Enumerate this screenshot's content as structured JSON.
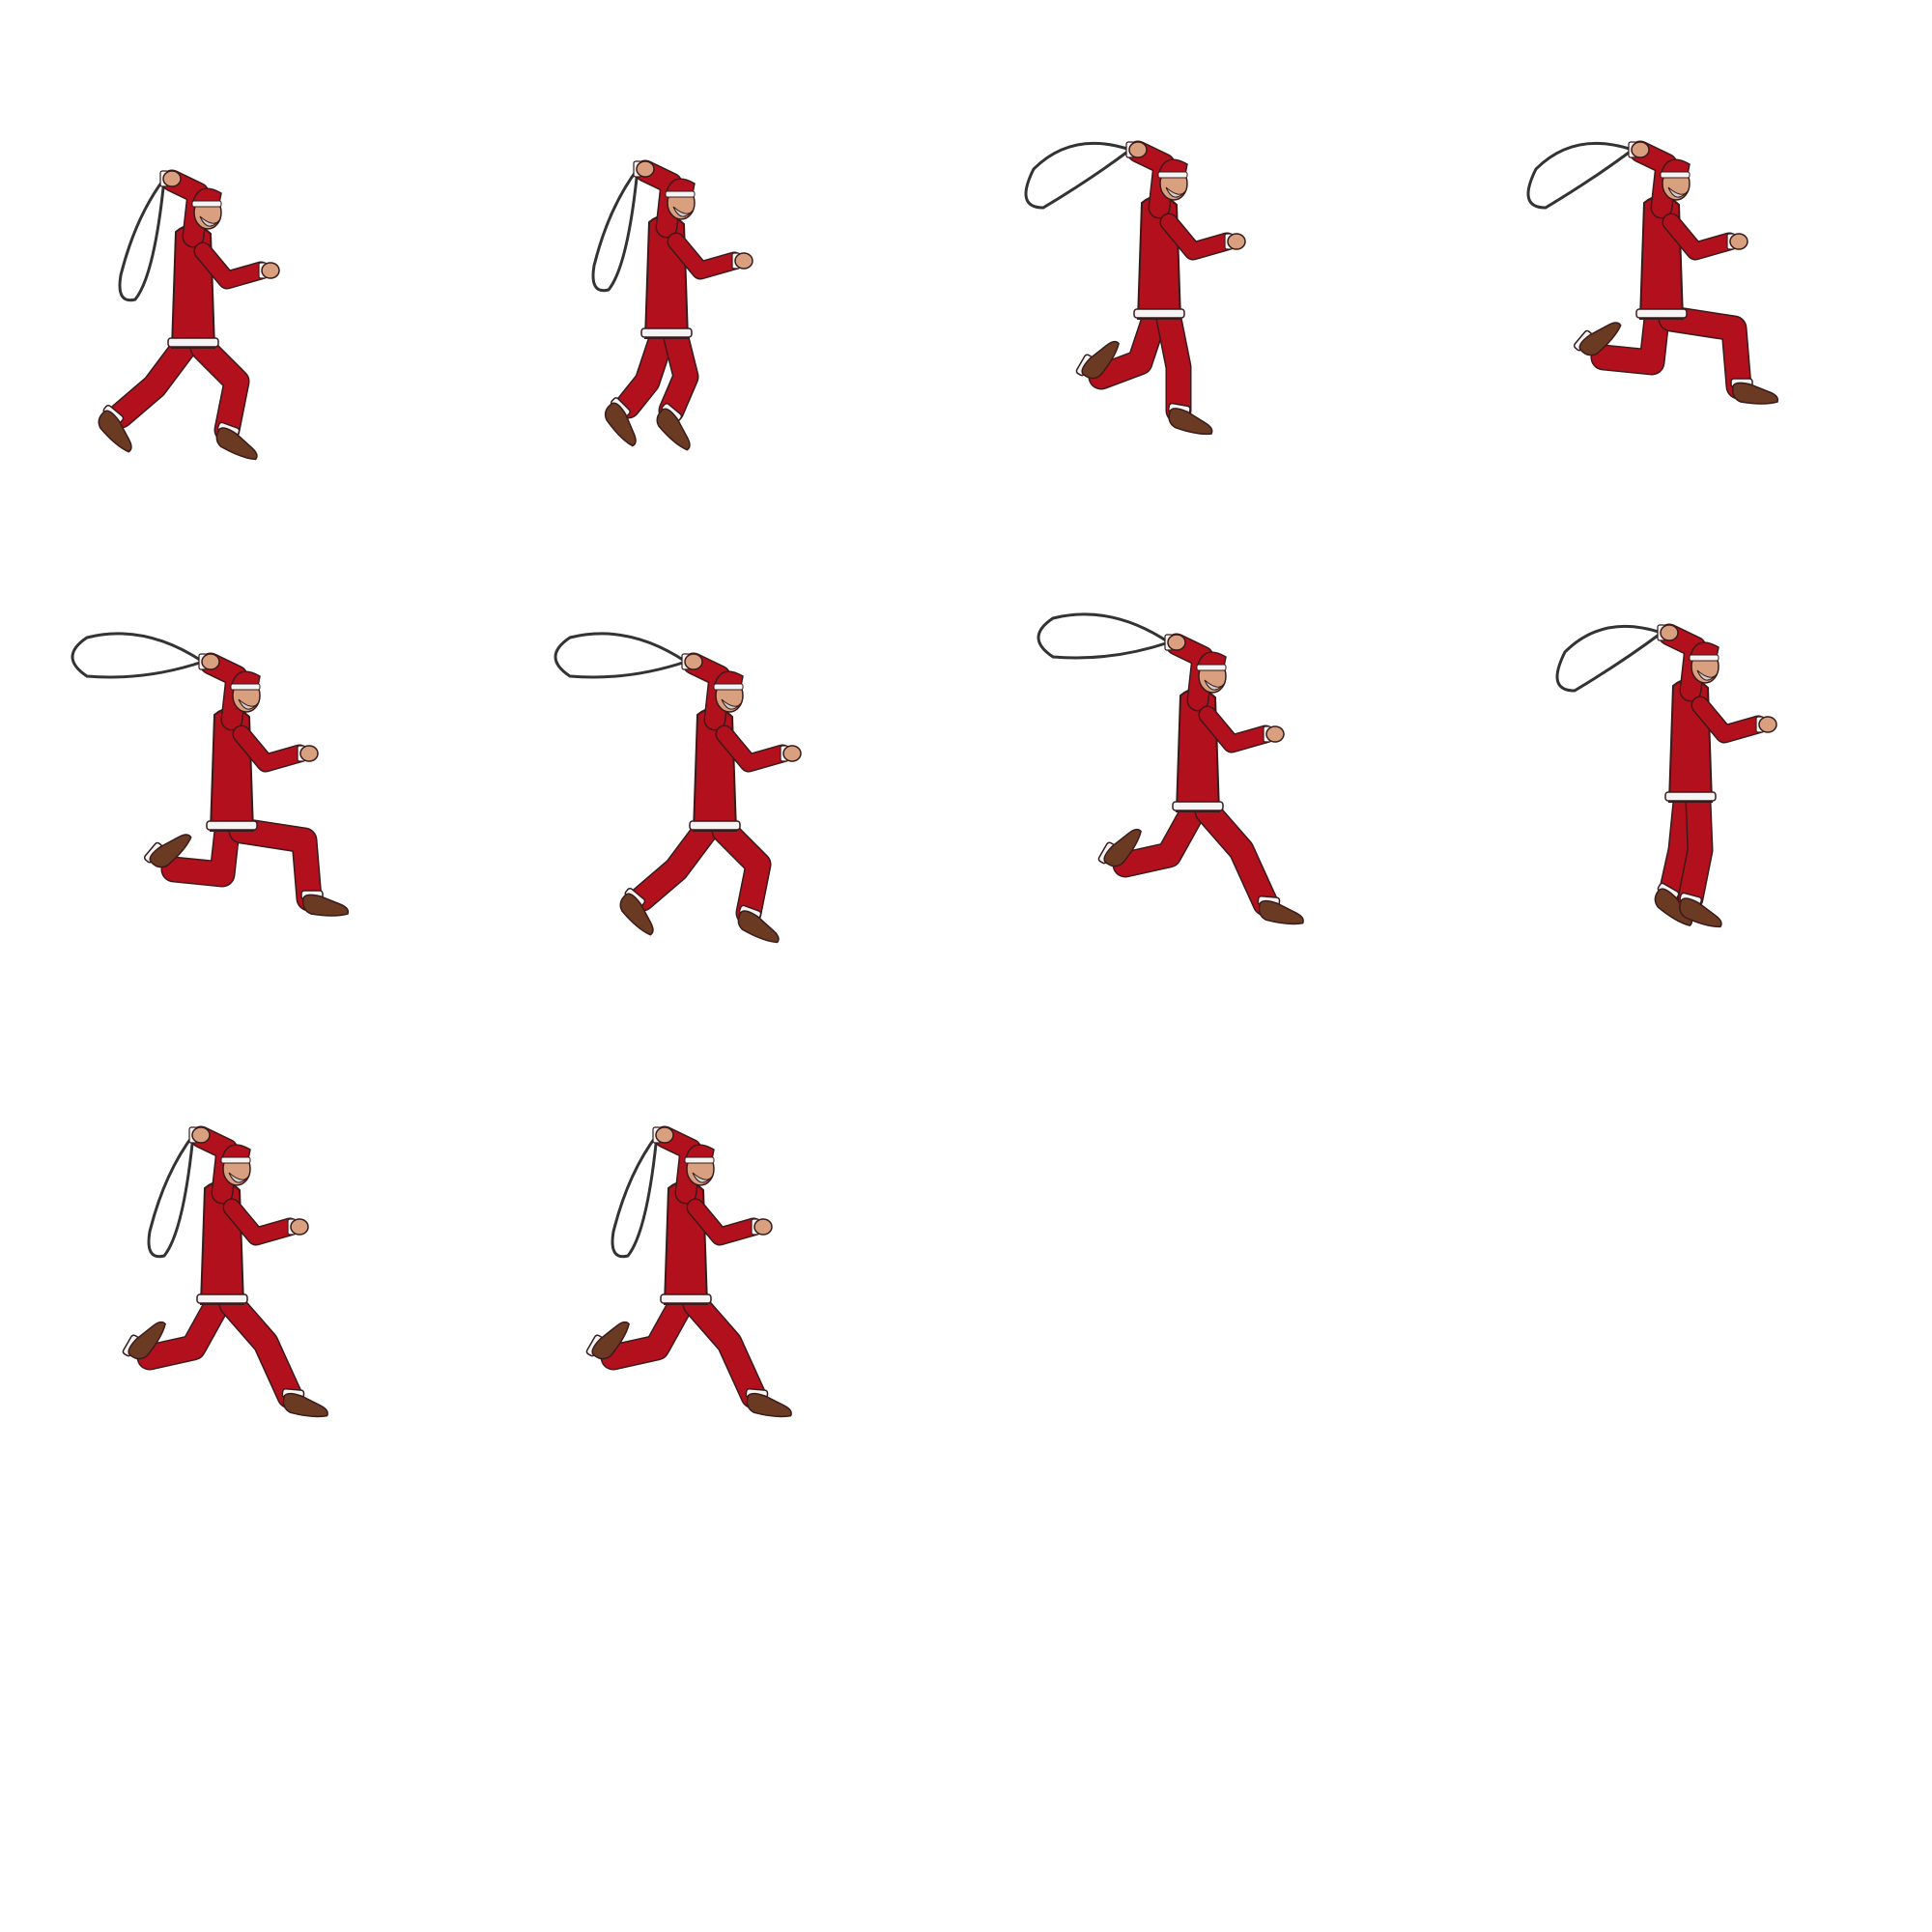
{
  "sprite_sheet": {
    "columns": 4,
    "rows": 4,
    "frame_count": 10,
    "background": "#ffffff",
    "colors": {
      "suit": "#b3101e",
      "suit_shadow": "#8e0c17",
      "fur": "#f4f4f4",
      "skin": "#d9a080",
      "boot": "#6b3a22",
      "bag_outline": "#333333",
      "beard": "#cccccc",
      "line": "#3a1a1a"
    },
    "frames": [
      {
        "index": 1,
        "pose": "leap",
        "bag": "hanging"
      },
      {
        "index": 2,
        "pose": "tuck",
        "bag": "hanging"
      },
      {
        "index": 3,
        "pose": "stride-short",
        "bag": "swinging"
      },
      {
        "index": 4,
        "pose": "lunge",
        "bag": "swinging"
      },
      {
        "index": 5,
        "pose": "lunge",
        "bag": "flying"
      },
      {
        "index": 6,
        "pose": "leap",
        "bag": "flying"
      },
      {
        "index": 7,
        "pose": "stride",
        "bag": "flying"
      },
      {
        "index": 8,
        "pose": "upright",
        "bag": "swinging"
      },
      {
        "index": 9,
        "pose": "stride",
        "bag": "hanging"
      },
      {
        "index": 10,
        "pose": "stride",
        "bag": "hanging"
      }
    ]
  }
}
